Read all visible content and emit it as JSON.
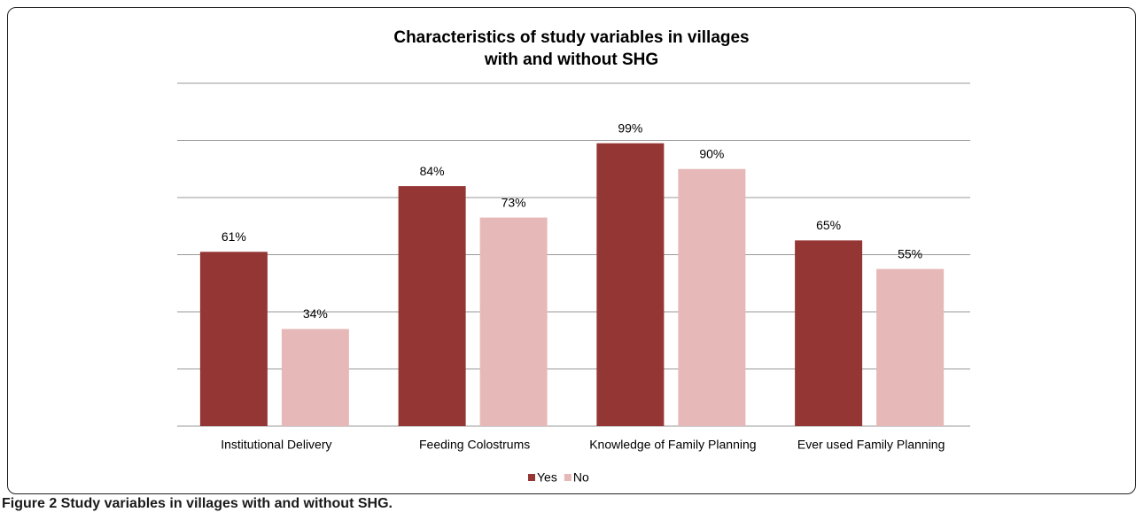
{
  "chart_data": {
    "type": "bar",
    "title": "Characteristics of study variables in villages with and without SHG",
    "categories": [
      "Institutional Delivery",
      "Feeding Colostrums",
      "Knowledge of Family Planning",
      "Ever used Family Planning"
    ],
    "series": [
      {
        "name": "Yes",
        "color": "#943634",
        "values": [
          61,
          84,
          99,
          65
        ],
        "value_labels": [
          "61%",
          "84%",
          "99%",
          "65%"
        ]
      },
      {
        "name": "No",
        "color": "#e6b9b8",
        "values": [
          34,
          73,
          90,
          55
        ],
        "value_labels": [
          "34%",
          "73%",
          "90%",
          "55%"
        ]
      }
    ],
    "ylim": [
      0,
      120
    ],
    "yticks": [
      0,
      20,
      40,
      60,
      80,
      100,
      120
    ],
    "grid": true,
    "legend": "bottom"
  },
  "caption": "Figure 2 Study variables in villages with and without SHG."
}
